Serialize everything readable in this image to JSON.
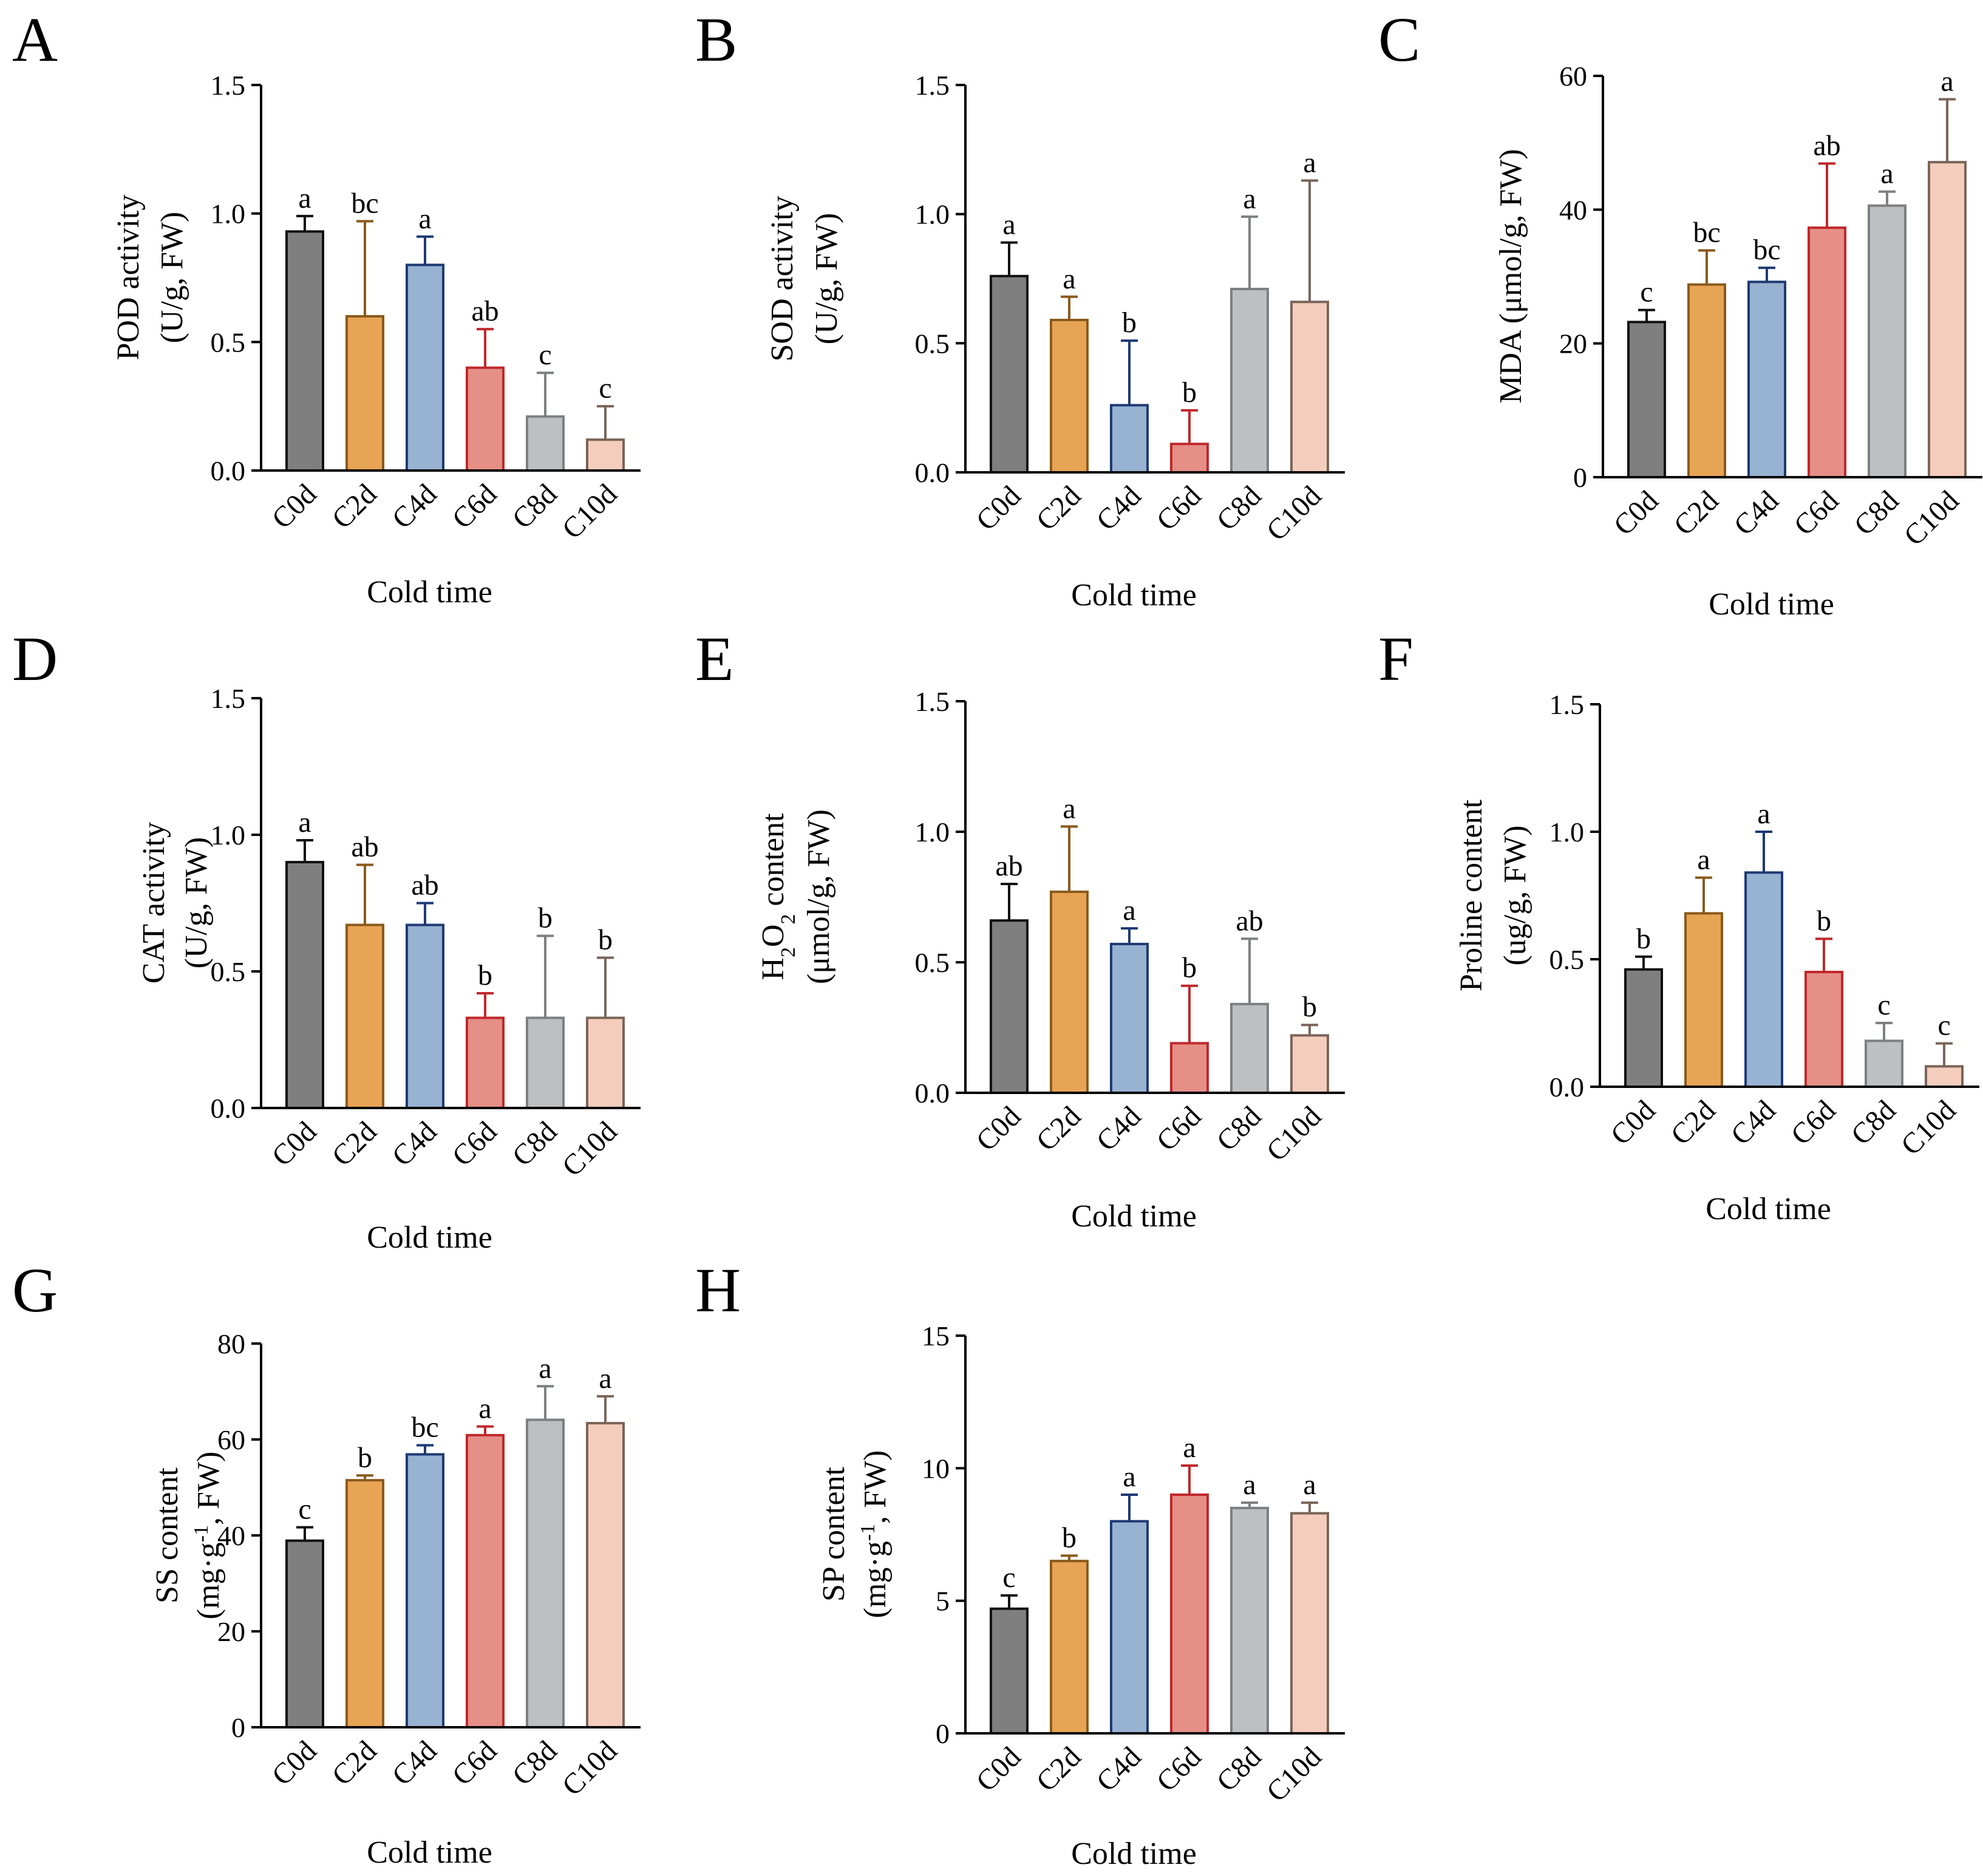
{
  "figure": {
    "x_axis_title": "Cold time",
    "categories": [
      "C0d",
      "C2d",
      "C4d",
      "C6d",
      "C8d",
      "C10d"
    ],
    "bar_colors": [
      {
        "fill": "#7f7f7f",
        "stroke": "#111111"
      },
      {
        "fill": "#e8a455",
        "stroke": "#8a5a1c"
      },
      {
        "fill": "#98b2d2",
        "stroke": "#1e3a73"
      },
      {
        "fill": "#e58f86",
        "stroke": "#c0282c"
      },
      {
        "fill": "#bcc0c3",
        "stroke": "#7d7f80"
      },
      {
        "fill": "#f4cdbd",
        "stroke": "#7a6459"
      }
    ]
  },
  "chart_data": [
    {
      "id": "A",
      "letter": "A",
      "type": "bar",
      "ylabel_line1": "POD activity",
      "ylabel_line2": "(U/g, FW)",
      "xlabel": "Cold time",
      "ylim": [
        0,
        1.5
      ],
      "yticks": [
        "0.0",
        "0.5",
        "1.0",
        "1.5"
      ],
      "categories": [
        "C0d",
        "C2d",
        "C4d",
        "C6d",
        "C8d",
        "C10d"
      ],
      "values": [
        0.93,
        0.6,
        0.8,
        0.4,
        0.21,
        0.12
      ],
      "errors": [
        0.06,
        0.37,
        0.11,
        0.15,
        0.17,
        0.13
      ],
      "significance": [
        "a",
        "bc",
        "a",
        "ab",
        "c",
        "c"
      ]
    },
    {
      "id": "B",
      "letter": "B",
      "type": "bar",
      "ylabel_line1": "SOD activity",
      "ylabel_line2": "(U/g, FW)",
      "xlabel": "Cold time",
      "ylim": [
        0,
        1.5
      ],
      "yticks": [
        "0.0",
        "0.5",
        "1.0",
        "1.5"
      ],
      "categories": [
        "C0d",
        "C2d",
        "C4d",
        "C6d",
        "C8d",
        "C10d"
      ],
      "values": [
        0.76,
        0.59,
        0.26,
        0.11,
        0.71,
        0.66
      ],
      "errors": [
        0.13,
        0.09,
        0.25,
        0.13,
        0.28,
        0.47
      ],
      "significance": [
        "a",
        "a",
        "b",
        "b",
        "a",
        "a"
      ]
    },
    {
      "id": "C",
      "letter": "C",
      "type": "bar",
      "ylabel_line1": "MDA (μmol/g, FW)",
      "ylabel_line2": "",
      "xlabel": "Cold time",
      "ylim": [
        0,
        60
      ],
      "yticks": [
        "0",
        "20",
        "40",
        "60"
      ],
      "categories": [
        "C0d",
        "C2d",
        "C4d",
        "C6d",
        "C8d",
        "C10d"
      ],
      "values": [
        23.2,
        28.8,
        29.2,
        37.3,
        40.6,
        47.1
      ],
      "errors": [
        1.8,
        5.1,
        2.1,
        9.6,
        2.1,
        9.4
      ],
      "significance": [
        "c",
        "bc",
        "bc",
        "ab",
        "a",
        "a"
      ]
    },
    {
      "id": "D",
      "letter": "D",
      "type": "bar",
      "ylabel_line1": "CAT activity",
      "ylabel_line2": "(U/g, FW)",
      "xlabel": "Cold time",
      "ylim": [
        0,
        1.5
      ],
      "yticks": [
        "0.0",
        "0.5",
        "1.0",
        "1.5"
      ],
      "categories": [
        "C0d",
        "C2d",
        "C4d",
        "C6d",
        "C8d",
        "C10d"
      ],
      "values": [
        0.9,
        0.67,
        0.67,
        0.33,
        0.33,
        0.33
      ],
      "errors": [
        0.08,
        0.22,
        0.08,
        0.09,
        0.3,
        0.22
      ],
      "significance": [
        "a",
        "ab",
        "ab",
        "b",
        "b",
        "b"
      ]
    },
    {
      "id": "E",
      "letter": "E",
      "type": "bar",
      "ylabel_html": "H<tspan baseline-shift='sub' font-size='34'>2</tspan>O<tspan baseline-shift='sub' font-size='34'>2</tspan> content",
      "ylabel_line1": "H2O2 content",
      "ylabel_line2": "(μmol/g, FW)",
      "xlabel": "Cold time",
      "ylim": [
        0,
        1.5
      ],
      "yticks": [
        "0.0",
        "0.5",
        "1.0",
        "1.5"
      ],
      "categories": [
        "C0d",
        "C2d",
        "C4d",
        "C6d",
        "C8d",
        "C10d"
      ],
      "values": [
        0.66,
        0.77,
        0.57,
        0.19,
        0.34,
        0.22
      ],
      "errors": [
        0.14,
        0.25,
        0.06,
        0.22,
        0.25,
        0.04
      ],
      "significance": [
        "ab",
        "a",
        "a",
        "b",
        "ab",
        "b"
      ]
    },
    {
      "id": "F",
      "letter": "F",
      "type": "bar",
      "ylabel_line1": "Proline content",
      "ylabel_line2": "(ug/g, FW)",
      "xlabel": "Cold time",
      "ylim": [
        0,
        1.5
      ],
      "yticks": [
        "0.0",
        "0.5",
        "1.0",
        "1.5"
      ],
      "categories": [
        "C0d",
        "C2d",
        "C4d",
        "C6d",
        "C8d",
        "C10d"
      ],
      "values": [
        0.46,
        0.68,
        0.84,
        0.45,
        0.18,
        0.08
      ],
      "errors": [
        0.05,
        0.14,
        0.16,
        0.13,
        0.07,
        0.09
      ],
      "significance": [
        "b",
        "a",
        "a",
        "b",
        "c",
        "c"
      ]
    },
    {
      "id": "G",
      "letter": "G",
      "type": "bar",
      "ylabel_line1": "SS content",
      "ylabel_line2": "(mg·g-1, FW)",
      "xlabel": "Cold time",
      "ylim": [
        0,
        80
      ],
      "yticks": [
        "0",
        "20",
        "40",
        "60",
        "80"
      ],
      "categories": [
        "C0d",
        "C2d",
        "C4d",
        "C6d",
        "C8d",
        "C10d"
      ],
      "values": [
        38.9,
        51.5,
        56.9,
        60.9,
        64.1,
        63.4
      ],
      "errors": [
        2.8,
        1.0,
        1.9,
        1.8,
        7.0,
        5.6
      ],
      "significance": [
        "c",
        "b",
        "bc",
        "a",
        "a",
        "a"
      ]
    },
    {
      "id": "H",
      "letter": "H",
      "type": "bar",
      "ylabel_line1": "SP content",
      "ylabel_line2": "(mg·g-1, FW)",
      "xlabel": "Cold time",
      "ylim": [
        0,
        15
      ],
      "yticks": [
        "0",
        "5",
        "10",
        "15"
      ],
      "categories": [
        "C0d",
        "C2d",
        "C4d",
        "C6d",
        "C8d",
        "C10d"
      ],
      "values": [
        4.7,
        6.5,
        8.0,
        9.0,
        8.5,
        8.3
      ],
      "errors": [
        0.5,
        0.2,
        1.0,
        1.1,
        0.2,
        0.4
      ],
      "significance": [
        "c",
        "b",
        "a",
        "a",
        "a",
        "a"
      ]
    }
  ]
}
